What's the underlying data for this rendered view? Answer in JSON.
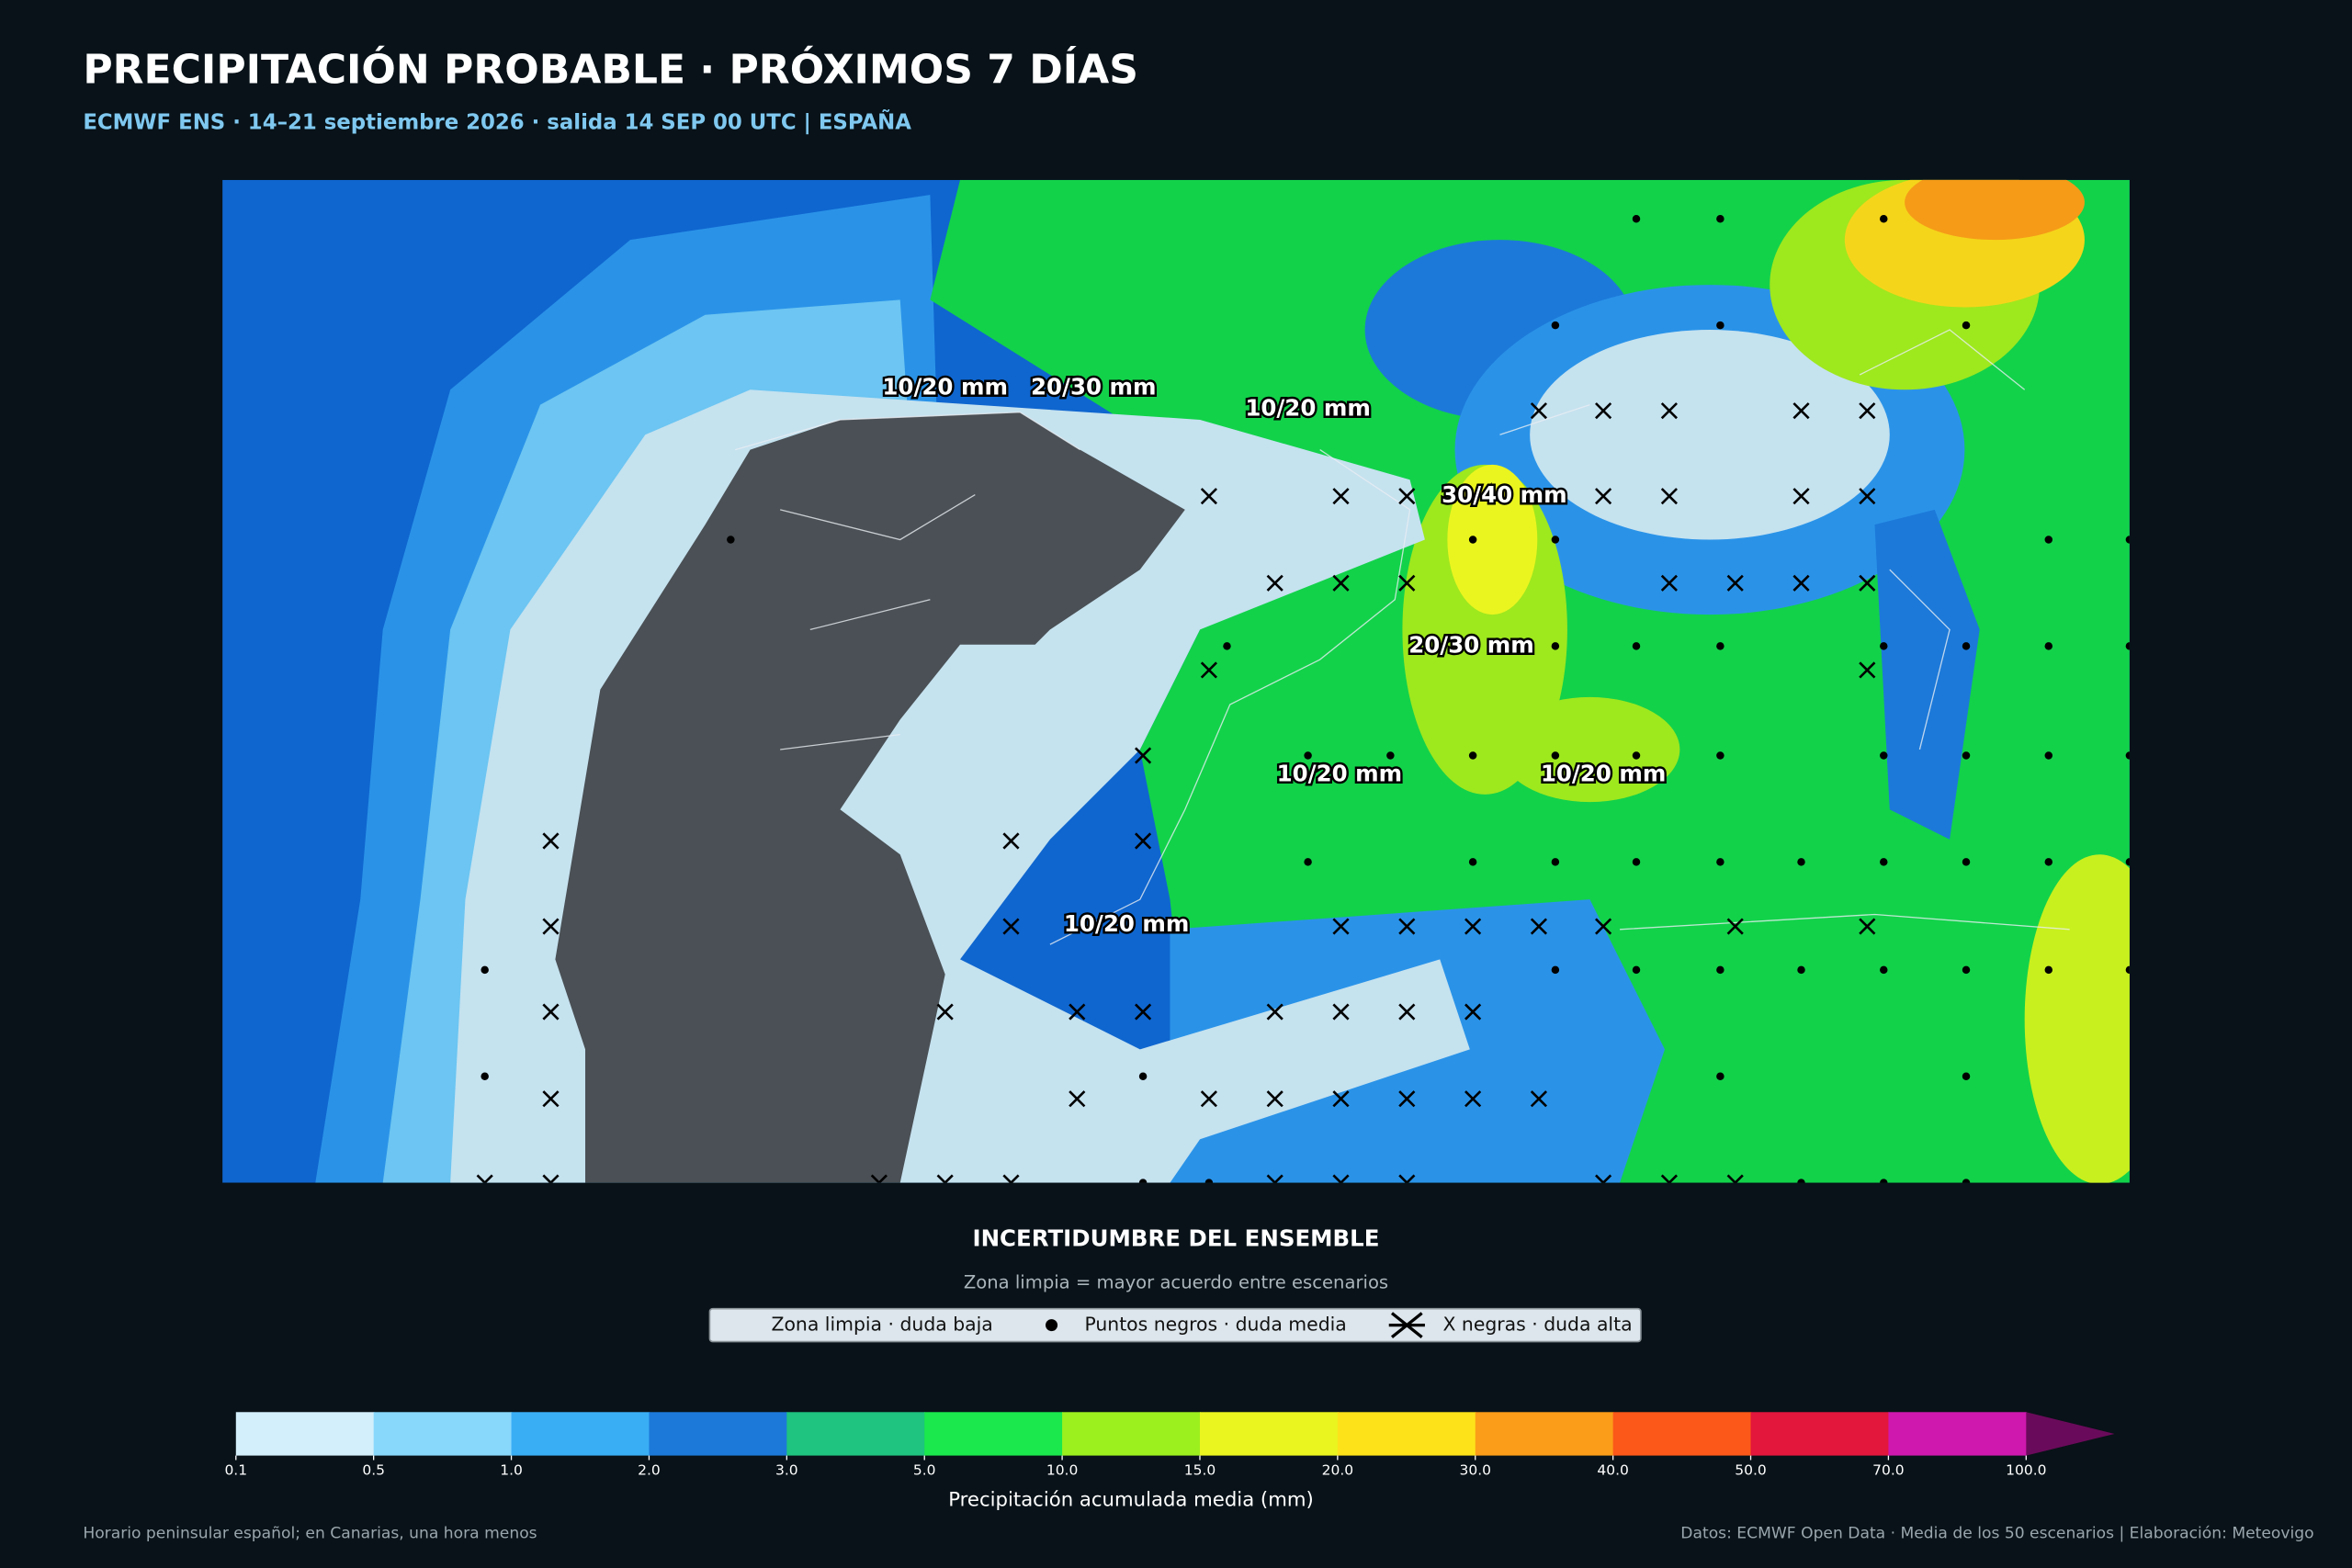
{
  "header": {
    "title": "PRECIPITACIÓN PROBABLE · PRÓXIMOS 7 DÍAS",
    "subtitle": "ECMWF ENS · 14–21 septiembre 2026 · salida 14 SEP 00 UTC | ESPAÑA"
  },
  "map": {
    "labels": [
      "10/20 mm",
      "20/30 mm",
      "10/20 mm",
      "30/40 mm",
      "20/30 mm",
      "10/20 mm",
      "10/20 mm",
      "10/20 mm"
    ]
  },
  "legend": {
    "title": "INCERTIDUMBRE DEL ENSEMBLE",
    "subtitle": "Zona limpia = mayor acuerdo entre escenarios",
    "entries": [
      "Zona limpia · duda baja",
      "Puntos negros · duda media",
      "X negras · duda alta"
    ]
  },
  "colorbar": {
    "label": "Precipitación acumulada media (mm)",
    "ticks": [
      0.1,
      0.5,
      {
        "value": 1,
        "label": "1.0"
      },
      {
        "value": 2,
        "label": "2.0"
      },
      {
        "value": 3,
        "label": "3.0"
      },
      {
        "value": 5,
        "label": "5.0"
      },
      {
        "value": 10,
        "label": "10.0"
      },
      {
        "value": 15,
        "label": "15.0"
      },
      {
        "value": 20,
        "label": "20.0"
      },
      {
        "value": 30,
        "label": "30.0"
      },
      {
        "value": 40,
        "label": "40.0"
      },
      {
        "value": 50,
        "label": "50.0"
      },
      {
        "value": 70,
        "label": "70.0"
      },
      {
        "value": 100,
        "label": "100.0"
      }
    ],
    "colors": [
      "#d4effc",
      "#88d8fc",
      "#3aaef5",
      "#1c79d9",
      "#1ec47f",
      "#1ae84c",
      "#9cf01e",
      "#eaf51f",
      "#fde21a",
      "#fb9d18",
      "#fb5819",
      "#e3163c",
      "#cf18ae"
    ],
    "extend_color": "#6a0a5a"
  },
  "footer": {
    "left": "Horario peninsular español; en Canarias, una hora menos",
    "right": "Datos: ECMWF Open Data · Media de los 50 escenarios | Elaboración: Meteovigo"
  }
}
